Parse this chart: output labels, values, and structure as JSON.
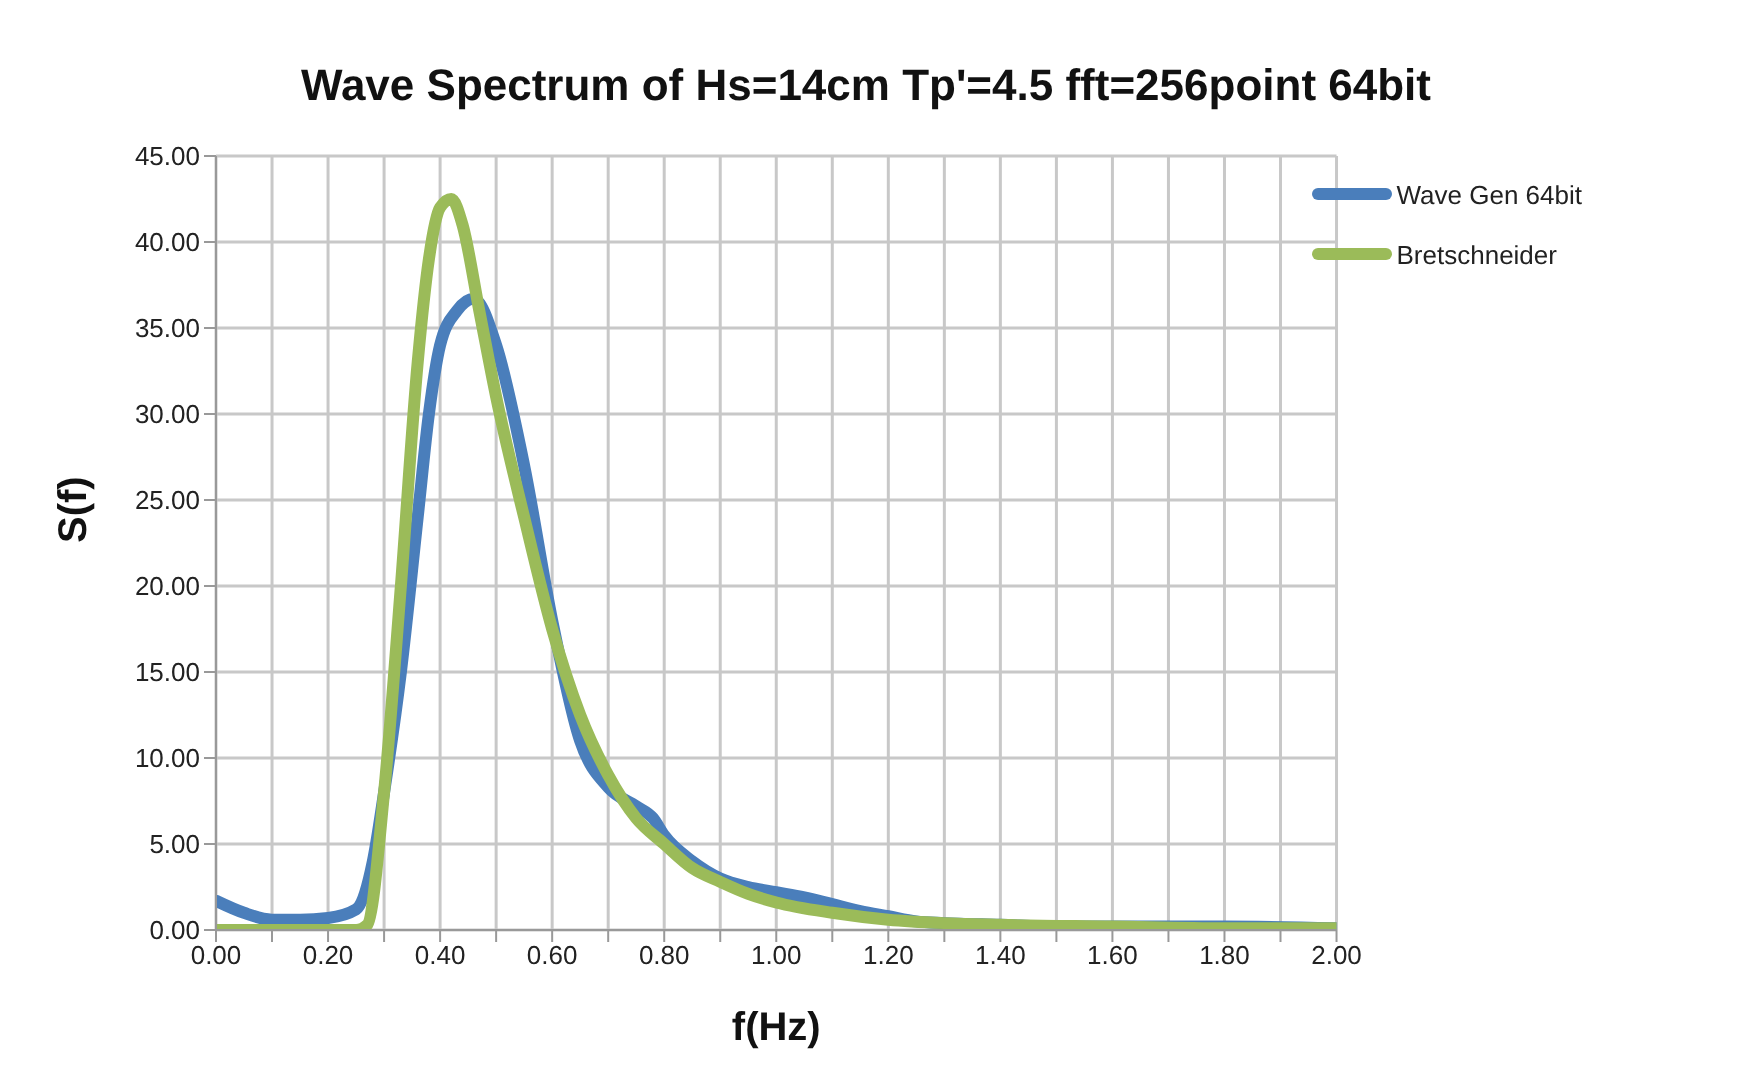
{
  "chart_data": {
    "type": "line",
    "title": "Wave Spectrum of Hs=14cm Tp'=4.5 fft=256point 64bit",
    "xlabel": "f(Hz)",
    "ylabel": "S(f)",
    "series": [
      {
        "name": "Wave Gen 64bit",
        "color": "#4a7ebb",
        "x": [
          0,
          0.05,
          0.1,
          0.15,
          0.2,
          0.25,
          0.28,
          0.3,
          0.33,
          0.36,
          0.38,
          0.4,
          0.43,
          0.46,
          0.5,
          0.55,
          0.6,
          0.65,
          0.7,
          0.75,
          0.78,
          0.8,
          0.85,
          0.9,
          0.95,
          1.0,
          1.05,
          1.1,
          1.15,
          1.2,
          1.25,
          1.3,
          1.4,
          1.5,
          1.6,
          1.8,
          2.0
        ],
        "values": [
          1.7,
          1.0,
          0.6,
          0.6,
          0.7,
          1.2,
          4,
          8,
          15,
          24,
          30,
          34,
          36,
          36.7,
          34,
          27,
          18,
          11,
          8.3,
          7.2,
          6.5,
          5.5,
          4,
          3,
          2.5,
          2.2,
          1.9,
          1.5,
          1.1,
          0.8,
          0.5,
          0.4,
          0.3,
          0.2,
          0.2,
          0.2,
          0.1
        ]
      },
      {
        "name": "Bretschneider",
        "color": "#9bbb59",
        "x": [
          0,
          0.1,
          0.2,
          0.25,
          0.27,
          0.3,
          0.33,
          0.36,
          0.38,
          0.4,
          0.42,
          0.44,
          0.47,
          0.5,
          0.55,
          0.6,
          0.65,
          0.7,
          0.75,
          0.8,
          0.85,
          0.9,
          0.95,
          1.0,
          1.1,
          1.2,
          1.3,
          1.4,
          1.6,
          1.8,
          2.0
        ],
        "values": [
          0,
          0,
          0,
          0,
          0.3,
          8,
          20,
          33,
          39,
          42,
          42.5,
          41,
          36,
          31,
          24,
          17.5,
          12.5,
          9,
          6.5,
          5,
          3.6,
          2.8,
          2.1,
          1.6,
          1.0,
          0.6,
          0.4,
          0.3,
          0.2,
          0.1,
          0.1
        ]
      }
    ],
    "xlim": [
      0,
      2
    ],
    "xticks": [
      {
        "value": 0,
        "label": "0.00"
      },
      {
        "value": 0.1,
        "label": null
      },
      {
        "value": 0.2,
        "label": "0.20"
      },
      {
        "value": 0.3,
        "label": null
      },
      {
        "value": 0.4,
        "label": "0.40"
      },
      {
        "value": 0.5,
        "label": null
      },
      {
        "value": 0.6,
        "label": "0.60"
      },
      {
        "value": 0.7,
        "label": null
      },
      {
        "value": 0.8,
        "label": "0.80"
      },
      {
        "value": 0.9,
        "label": null
      },
      {
        "value": 1.0,
        "label": "1.00"
      },
      {
        "value": 1.1,
        "label": null
      },
      {
        "value": 1.2,
        "label": "1.20"
      },
      {
        "value": 1.3,
        "label": null
      },
      {
        "value": 1.4,
        "label": "1.40"
      },
      {
        "value": 1.5,
        "label": null
      },
      {
        "value": 1.6,
        "label": "1.60"
      },
      {
        "value": 1.7,
        "label": null
      },
      {
        "value": 1.8,
        "label": "1.80"
      },
      {
        "value": 1.9,
        "label": null
      },
      {
        "value": 2.0,
        "label": "2.00"
      }
    ],
    "ylim": [
      0,
      45
    ],
    "yticks": [
      {
        "value": 0,
        "label": "0.00"
      },
      {
        "value": 5,
        "label": "5.00"
      },
      {
        "value": 10,
        "label": "10.00"
      },
      {
        "value": 15,
        "label": "15.00"
      },
      {
        "value": 20,
        "label": "20.00"
      },
      {
        "value": 25,
        "label": "25.00"
      },
      {
        "value": 30,
        "label": "30.00"
      },
      {
        "value": 35,
        "label": "35.00"
      },
      {
        "value": 40,
        "label": "40.00"
      },
      {
        "value": 45,
        "label": "45.00"
      }
    ],
    "grid": true,
    "legend": "top right",
    "marker": "none",
    "line_style": "solid"
  }
}
